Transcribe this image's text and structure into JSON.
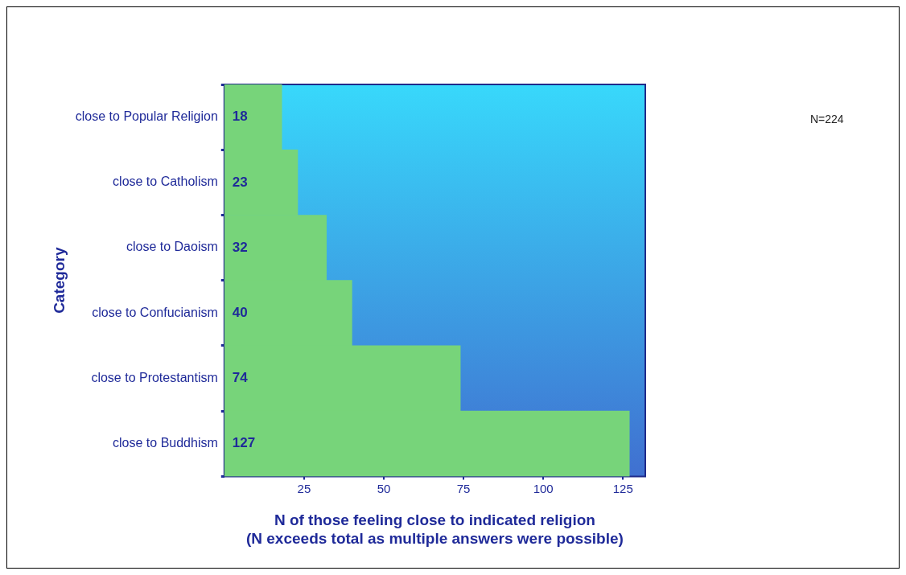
{
  "chart_data": {
    "type": "bar",
    "orientation": "horizontal",
    "categories": [
      "close to Popular Religion",
      "close to Catholism",
      "close to Daoism",
      "close to Confucianism",
      "close to Protestantism",
      "close to Buddhism"
    ],
    "values": [
      18,
      23,
      32,
      40,
      74,
      127
    ],
    "color": "#77d47a",
    "xlim": [
      0,
      132
    ],
    "xticks": [
      25,
      50,
      75,
      100,
      125
    ],
    "xlabel": "N of those feeling close to indicated religion\n(N exceeds total as multiple answers were possible)",
    "ylabel": "Category",
    "data_labels": true,
    "legend": false,
    "annotations": [
      "N=224"
    ]
  }
}
